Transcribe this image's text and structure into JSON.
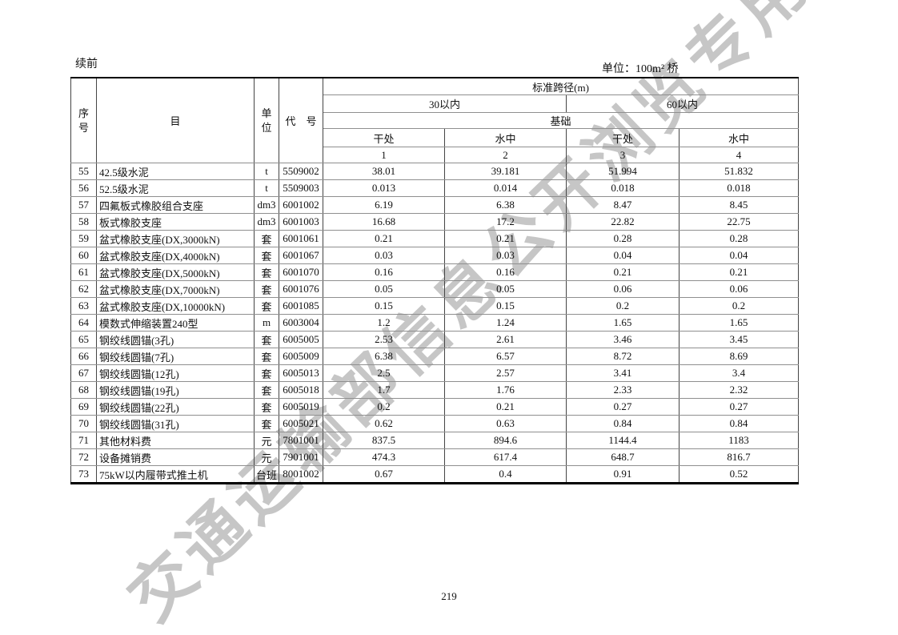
{
  "page": {
    "continued_label": "续前",
    "unit_label": "单位：100m² 桥",
    "page_number": "219"
  },
  "watermark": {
    "text": "交通运输部信息公开浏览专用",
    "color": "#c6c6c6"
  },
  "table": {
    "header": {
      "seq": "序号",
      "item": "目",
      "unit": "单位",
      "code": "代　号",
      "span_title": "标准跨径(m)",
      "span_30": "30以内",
      "span_60": "60以内",
      "foundation": "基础",
      "dry": "干处",
      "water": "水中",
      "col_nums": [
        "1",
        "2",
        "3",
        "4"
      ]
    },
    "rows": [
      {
        "no": "55",
        "item": "42.5级水泥",
        "unit": "t",
        "code": "5509002",
        "v1": "38.01",
        "v2": "39.181",
        "v3": "51.994",
        "v4": "51.832"
      },
      {
        "no": "56",
        "item": "52.5级水泥",
        "unit": "t",
        "code": "5509003",
        "v1": "0.013",
        "v2": "0.014",
        "v3": "0.018",
        "v4": "0.018"
      },
      {
        "no": "57",
        "item": "四氟板式橡胶组合支座",
        "unit": "dm3",
        "code": "6001002",
        "v1": "6.19",
        "v2": "6.38",
        "v3": "8.47",
        "v4": "8.45"
      },
      {
        "no": "58",
        "item": "板式橡胶支座",
        "unit": "dm3",
        "code": "6001003",
        "v1": "16.68",
        "v2": "17.2",
        "v3": "22.82",
        "v4": "22.75"
      },
      {
        "no": "59",
        "item": "盆式橡胶支座(DX,3000kN)",
        "unit": "套",
        "code": "6001061",
        "v1": "0.21",
        "v2": "0.21",
        "v3": "0.28",
        "v4": "0.28"
      },
      {
        "no": "60",
        "item": "盆式橡胶支座(DX,4000kN)",
        "unit": "套",
        "code": "6001067",
        "v1": "0.03",
        "v2": "0.03",
        "v3": "0.04",
        "v4": "0.04"
      },
      {
        "no": "61",
        "item": "盆式橡胶支座(DX,5000kN)",
        "unit": "套",
        "code": "6001070",
        "v1": "0.16",
        "v2": "0.16",
        "v3": "0.21",
        "v4": "0.21"
      },
      {
        "no": "62",
        "item": "盆式橡胶支座(DX,7000kN)",
        "unit": "套",
        "code": "6001076",
        "v1": "0.05",
        "v2": "0.05",
        "v3": "0.06",
        "v4": "0.06"
      },
      {
        "no": "63",
        "item": "盆式橡胶支座(DX,10000kN)",
        "unit": "套",
        "code": "6001085",
        "v1": "0.15",
        "v2": "0.15",
        "v3": "0.2",
        "v4": "0.2"
      },
      {
        "no": "64",
        "item": "模数式伸缩装置240型",
        "unit": "m",
        "code": "6003004",
        "v1": "1.2",
        "v2": "1.24",
        "v3": "1.65",
        "v4": "1.65"
      },
      {
        "no": "65",
        "item": "钢绞线圆锚(3孔)",
        "unit": "套",
        "code": "6005005",
        "v1": "2.53",
        "v2": "2.61",
        "v3": "3.46",
        "v4": "3.45"
      },
      {
        "no": "66",
        "item": "钢绞线圆锚(7孔)",
        "unit": "套",
        "code": "6005009",
        "v1": "6.38",
        "v2": "6.57",
        "v3": "8.72",
        "v4": "8.69"
      },
      {
        "no": "67",
        "item": "钢绞线圆锚(12孔)",
        "unit": "套",
        "code": "6005013",
        "v1": "2.5",
        "v2": "2.57",
        "v3": "3.41",
        "v4": "3.4"
      },
      {
        "no": "68",
        "item": "钢绞线圆锚(19孔)",
        "unit": "套",
        "code": "6005018",
        "v1": "1.7",
        "v2": "1.76",
        "v3": "2.33",
        "v4": "2.32"
      },
      {
        "no": "69",
        "item": "钢绞线圆锚(22孔)",
        "unit": "套",
        "code": "6005019",
        "v1": "0.2",
        "v2": "0.21",
        "v3": "0.27",
        "v4": "0.27"
      },
      {
        "no": "70",
        "item": "钢绞线圆锚(31孔)",
        "unit": "套",
        "code": "6005021",
        "v1": "0.62",
        "v2": "0.63",
        "v3": "0.84",
        "v4": "0.84"
      },
      {
        "no": "71",
        "item": "其他材料费",
        "unit": "元",
        "code": "7801001",
        "v1": "837.5",
        "v2": "894.6",
        "v3": "1144.4",
        "v4": "1183"
      },
      {
        "no": "72",
        "item": "设备摊销费",
        "unit": "元",
        "code": "7901001",
        "v1": "474.3",
        "v2": "617.4",
        "v3": "648.7",
        "v4": "816.7"
      },
      {
        "no": "73",
        "item": "75kW以内履带式推土机",
        "unit": "台班",
        "code": "8001002",
        "v1": "0.67",
        "v2": "0.4",
        "v3": "0.91",
        "v4": "0.52"
      }
    ]
  }
}
